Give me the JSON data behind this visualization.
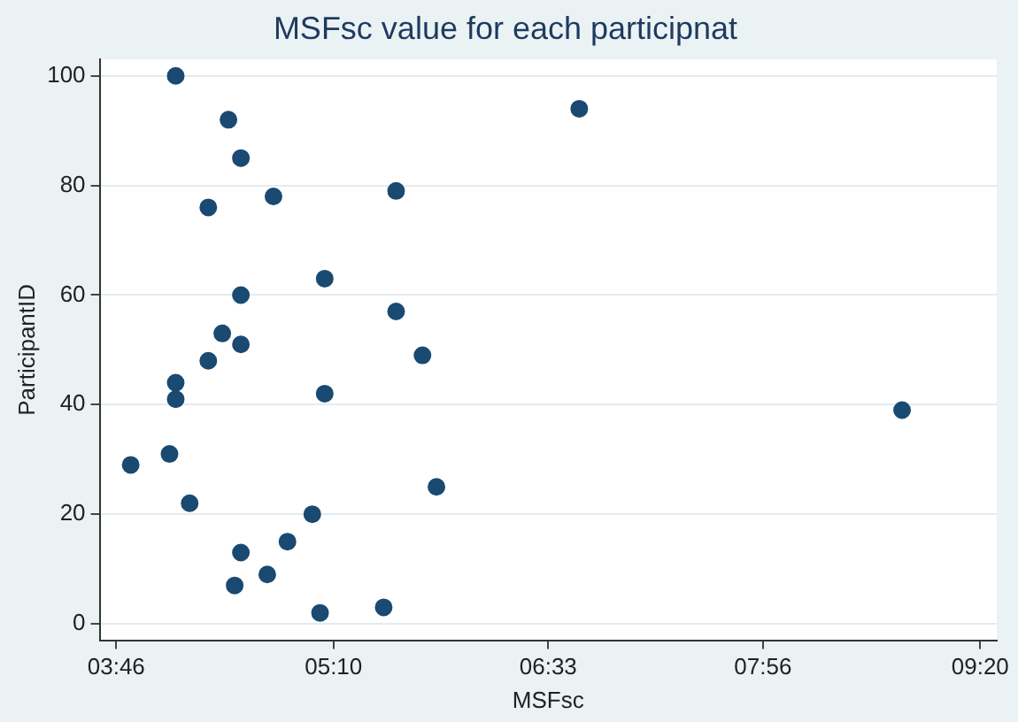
{
  "chart_data": {
    "type": "scatter",
    "title": "MSFsc value for each participnat",
    "xlabel": "MSFsc",
    "ylabel": "ParticipantID",
    "x": [
      4.15,
      4.49,
      4.57,
      4.36,
      4.78,
      5.57,
      5.11,
      4.57,
      5.57,
      4.45,
      4.57,
      5.74,
      4.36,
      4.15,
      4.15,
      5.11,
      3.86,
      4.11,
      4.24,
      5.83,
      5.03,
      4.87,
      4.57,
      4.74,
      4.53,
      5.08,
      5.49,
      6.75,
      8.83
    ],
    "series": [
      {
        "color": "#1a4a72",
        "values": [
          100,
          92,
          85,
          76,
          78,
          79,
          63,
          60,
          57,
          53,
          51,
          49,
          48,
          44,
          41,
          42,
          29,
          31,
          22,
          25,
          20,
          15,
          13,
          9,
          7,
          2,
          3,
          94,
          39
        ]
      }
    ],
    "xlim": [
      3.66,
      9.44
    ],
    "ylim": [
      -3,
      103
    ],
    "xticks": [
      {
        "value": 3.7667,
        "label": "03:46"
      },
      {
        "value": 5.1667,
        "label": "05:10"
      },
      {
        "value": 6.55,
        "label": "06:33"
      },
      {
        "value": 7.9333,
        "label": "07:56"
      },
      {
        "value": 9.3333,
        "label": "09:20"
      }
    ],
    "yticks": [
      0,
      20,
      40,
      60,
      80,
      100
    ],
    "grid": "y",
    "marker": "circle",
    "legend": false
  }
}
